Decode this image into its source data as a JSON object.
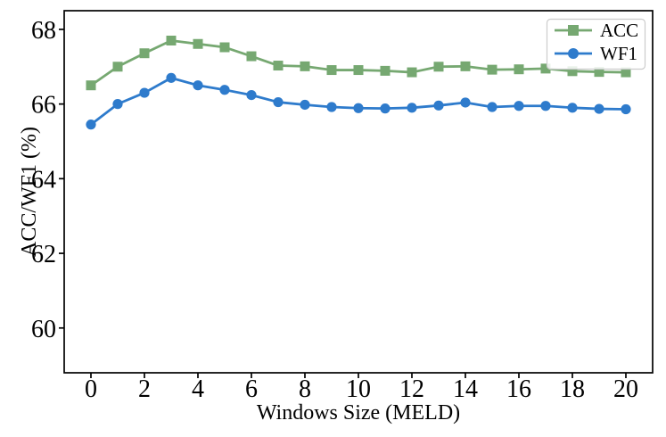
{
  "chart_data": {
    "type": "line",
    "title": "",
    "xlabel": "Windows Size (MELD)",
    "ylabel": "ACC/WF1 (%)",
    "x": [
      0,
      1,
      2,
      3,
      4,
      5,
      6,
      7,
      8,
      9,
      10,
      11,
      12,
      13,
      14,
      15,
      16,
      17,
      18,
      19,
      20
    ],
    "series": [
      {
        "name": "ACC",
        "color": "#76a871",
        "marker": "square",
        "values": [
          66.5,
          67.0,
          67.36,
          67.7,
          67.61,
          67.52,
          67.28,
          67.03,
          67.01,
          66.91,
          66.91,
          66.89,
          66.85,
          67.0,
          67.01,
          66.92,
          66.93,
          66.95,
          66.88,
          66.86,
          66.85
        ]
      },
      {
        "name": "WF1",
        "color": "#2e7bcc",
        "marker": "circle",
        "values": [
          65.45,
          66.0,
          66.3,
          66.7,
          66.5,
          66.38,
          66.24,
          66.05,
          65.98,
          65.92,
          65.89,
          65.88,
          65.9,
          65.96,
          66.04,
          65.92,
          65.95,
          65.95,
          65.9,
          65.87,
          65.86
        ]
      }
    ],
    "xlim": [
      -1,
      21
    ],
    "ylim": [
      58.8,
      68.5
    ],
    "xticks": [
      0,
      2,
      4,
      6,
      8,
      10,
      12,
      14,
      16,
      18,
      20
    ],
    "yticks": [
      60,
      62,
      64,
      66,
      68
    ],
    "grid": false,
    "legend": {
      "position": "upper right",
      "entries": [
        "ACC",
        "WF1"
      ]
    },
    "axis_color": "#000000",
    "legend_border_color": "#cccccc"
  }
}
